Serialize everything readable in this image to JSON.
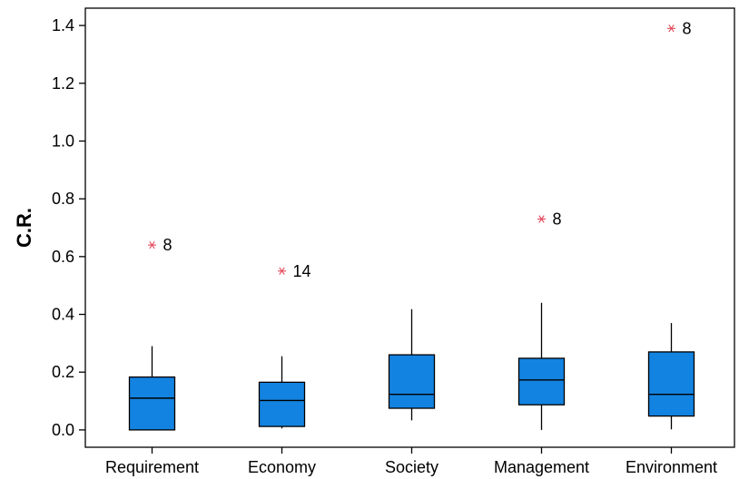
{
  "chart_data": {
    "type": "box",
    "ylabel": "C.R.",
    "ylim": [
      -0.06,
      1.46
    ],
    "yticks": [
      "0.0",
      "0.2",
      "0.4",
      "0.6",
      "0.8",
      "1.0",
      "1.2",
      "1.4"
    ],
    "grid": false,
    "categories": [
      "Requirement",
      "Economy",
      "Society",
      "Management",
      "Environment"
    ],
    "boxes": [
      {
        "category": "Requirement",
        "whisker_low": 0.0,
        "q1": 0.0,
        "median": 0.11,
        "q3": 0.183,
        "whisker_high": 0.29,
        "outliers": [
          {
            "value": 0.64,
            "label": "8"
          }
        ]
      },
      {
        "category": "Economy",
        "whisker_low": 0.005,
        "q1": 0.012,
        "median": 0.102,
        "q3": 0.165,
        "whisker_high": 0.255,
        "outliers": [
          {
            "value": 0.55,
            "label": "14"
          }
        ]
      },
      {
        "category": "Society",
        "whisker_low": 0.033,
        "q1": 0.075,
        "median": 0.123,
        "q3": 0.26,
        "whisker_high": 0.418,
        "outliers": []
      },
      {
        "category": "Management",
        "whisker_low": 0.0,
        "q1": 0.087,
        "median": 0.173,
        "q3": 0.248,
        "whisker_high": 0.44,
        "outliers": [
          {
            "value": 0.73,
            "label": "8"
          }
        ]
      },
      {
        "category": "Environment",
        "whisker_low": 0.002,
        "q1": 0.048,
        "median": 0.123,
        "q3": 0.27,
        "whisker_high": 0.37,
        "outliers": [
          {
            "value": 1.39,
            "label": "8"
          }
        ]
      }
    ],
    "colors": {
      "box_fill": "#1383e1",
      "outlier_marker": "#e4485a",
      "axis": "#000000"
    }
  }
}
